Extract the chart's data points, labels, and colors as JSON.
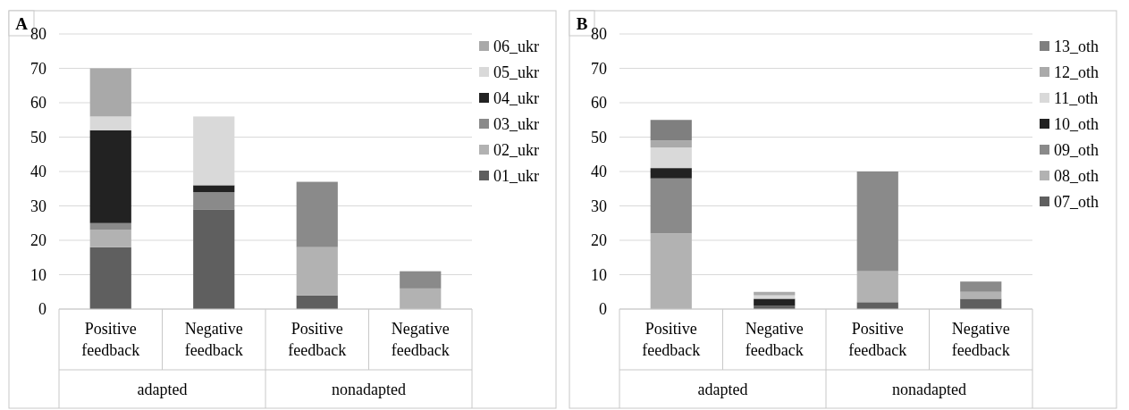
{
  "chart_data": [
    {
      "type": "bar",
      "title": "A",
      "stacked": true,
      "categories": [
        "Positive feedback",
        "Negative feedback",
        "Positive feedback",
        "Negative feedback"
      ],
      "annotations": [
        "adapted",
        "nonadapted"
      ],
      "ylim": [
        0,
        80
      ],
      "yticks": [
        0,
        10,
        20,
        30,
        40,
        50,
        60,
        70,
        80
      ],
      "grid": "y",
      "legend": "right",
      "series": [
        {
          "name": "01_ukr",
          "color": "#5f5f5f",
          "values": [
            18,
            29,
            4,
            0
          ]
        },
        {
          "name": "02_ukr",
          "color": "#b2b2b2",
          "values": [
            5,
            0,
            14,
            6
          ]
        },
        {
          "name": "03_ukr",
          "color": "#8a8a8a",
          "values": [
            2,
            5,
            19,
            5
          ]
        },
        {
          "name": "04_ukr",
          "color": "#222222",
          "values": [
            27,
            2,
            0,
            0
          ]
        },
        {
          "name": "05_ukr",
          "color": "#d9d9d9",
          "values": [
            4,
            20,
            0,
            0
          ]
        },
        {
          "name": "06_ukr",
          "color": "#a9a9a9",
          "values": [
            14,
            0,
            0,
            0
          ]
        }
      ]
    },
    {
      "type": "bar",
      "title": "B",
      "stacked": true,
      "categories": [
        "Positive feedback",
        "Negative feedback",
        "Positive feedback",
        "Negative feedback"
      ],
      "annotations": [
        "adapted",
        "nonadapted"
      ],
      "ylim": [
        0,
        80
      ],
      "yticks": [
        0,
        10,
        20,
        30,
        40,
        50,
        60,
        70,
        80
      ],
      "grid": "y",
      "legend": "right",
      "series": [
        {
          "name": "07_oth",
          "color": "#5f5f5f",
          "values": [
            0,
            1,
            2,
            3
          ]
        },
        {
          "name": "08_oth",
          "color": "#b2b2b2",
          "values": [
            22,
            0,
            9,
            2
          ]
        },
        {
          "name": "09_oth",
          "color": "#8a8a8a",
          "values": [
            16,
            0,
            29,
            3
          ]
        },
        {
          "name": "10_oth",
          "color": "#222222",
          "values": [
            3,
            2,
            0,
            0
          ]
        },
        {
          "name": "11_oth",
          "color": "#d9d9d9",
          "values": [
            6,
            1,
            0,
            0
          ]
        },
        {
          "name": "12_oth",
          "color": "#aaaaaa",
          "values": [
            2,
            1,
            0,
            0
          ]
        },
        {
          "name": "13_oth",
          "color": "#7f7f7f",
          "values": [
            6,
            0,
            0,
            0
          ]
        }
      ]
    }
  ]
}
